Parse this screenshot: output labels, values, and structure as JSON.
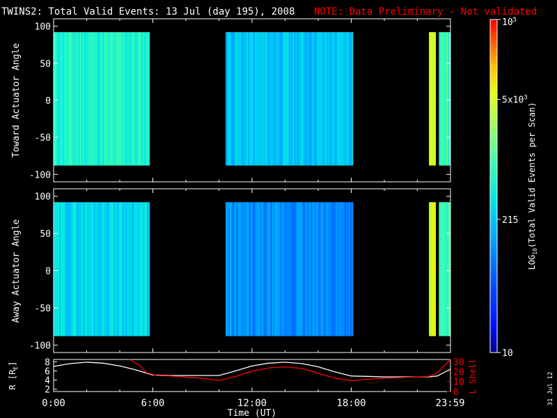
{
  "title": {
    "main": "TWINS2: Total Valid Events: 13 Jul (day 195), 2008",
    "note": "NOTE: Data Preliminary - Not validated"
  },
  "colors": {
    "background": "#000000",
    "axes": "#ffffff",
    "note": "#ff0000",
    "r_line": "#ffffff",
    "lshell_line": "#ff0000"
  },
  "chart_data": [
    {
      "type": "heatmap",
      "name": "toward-panel",
      "ylabel": "Toward Actuator Angle",
      "ylim": [
        -110,
        110
      ],
      "yticks": [
        100,
        50,
        0,
        -50,
        -100
      ],
      "ytick_labels": [
        "100",
        "50",
        "0",
        "-50",
        "-100"
      ],
      "data_y_range": [
        -88,
        92
      ],
      "xlim": [
        0,
        24
      ],
      "segments": [
        {
          "start": 0.0,
          "end": 5.8,
          "level": 0.52
        },
        {
          "start": 10.4,
          "end": 18.1,
          "level": 0.4
        },
        {
          "start": 22.7,
          "end": 23.1,
          "level": 0.78
        },
        {
          "start": 23.3,
          "end": 24.0,
          "level": 0.56
        }
      ]
    },
    {
      "type": "heatmap",
      "name": "away-panel",
      "ylabel": "Away Actuator Angle",
      "ylim": [
        -110,
        110
      ],
      "yticks": [
        100,
        50,
        0,
        -50,
        -100
      ],
      "ytick_labels": [
        "100",
        "50",
        "0",
        "-50",
        "-100"
      ],
      "data_y_range": [
        -88,
        92
      ],
      "xlim": [
        0,
        24
      ],
      "segments": [
        {
          "start": 0.0,
          "end": 5.8,
          "level": 0.44
        },
        {
          "start": 10.4,
          "end": 18.1,
          "level": 0.3
        },
        {
          "start": 22.7,
          "end": 23.1,
          "level": 0.76
        },
        {
          "start": 23.3,
          "end": 24.0,
          "level": 0.56
        }
      ]
    },
    {
      "type": "line",
      "name": "orbit-panel",
      "ylabel_left": "R [R",
      "ylabel_left_sub": "E",
      "ylabel_left_close": "]",
      "ylabel_right": "L Shell",
      "ylim_left": [
        1.5,
        8.5
      ],
      "yticks_left": [
        8,
        6,
        4,
        2
      ],
      "ytick_labels_left": [
        "8",
        "6",
        "4",
        "2"
      ],
      "ylim_right": [
        0,
        32
      ],
      "yticks_right": [
        30,
        20,
        10,
        0
      ],
      "ytick_labels_right": [
        "30",
        "20",
        "10",
        "0"
      ],
      "xlim": [
        0,
        24
      ],
      "xtick_values": [
        0,
        6,
        12,
        18,
        23.98
      ],
      "xtick_labels": [
        "0:00",
        "6:00",
        "12:00",
        "18:00",
        "23:59"
      ],
      "xlabel": "Time (UT)",
      "series": [
        {
          "name": "R",
          "axis": "left",
          "x": [
            0,
            1,
            2,
            3,
            4,
            5,
            6,
            7,
            8,
            9,
            10,
            11,
            12,
            13,
            14,
            15,
            16,
            17,
            18,
            19,
            20,
            21,
            22,
            22.7,
            23.2,
            24
          ],
          "y": [
            7.0,
            7.6,
            7.9,
            7.7,
            7.1,
            6.2,
            5.1,
            5.0,
            5.0,
            5.0,
            5.0,
            6.0,
            7.1,
            7.7,
            7.9,
            7.6,
            6.9,
            5.8,
            4.9,
            4.8,
            4.7,
            4.7,
            4.7,
            4.7,
            4.9,
            6.4
          ]
        },
        {
          "name": "L Shell",
          "axis": "right",
          "x": [
            4.6,
            5.2,
            5.6,
            6.2,
            7,
            8,
            9,
            10,
            11,
            12,
            13,
            14,
            15,
            16,
            17,
            18,
            19,
            20,
            21,
            22,
            22.7,
            23.2,
            24
          ],
          "y": [
            33,
            26,
            19,
            16,
            15.6,
            14.5,
            13.2,
            11.0,
            15.0,
            20.3,
            23.6,
            24.6,
            23.0,
            18.2,
            13.3,
            10.9,
            12.2,
            13.4,
            14.0,
            14.6,
            15.0,
            18.5,
            33
          ]
        }
      ]
    },
    {
      "type": "colorbar",
      "name": "colorbar",
      "label_main": "LOG",
      "label_sub": "10",
      "label_rest": "(Total Valid Events per Scan)",
      "tick_labels": [
        "10",
        "215",
        "5x10",
        "10"
      ],
      "tick_exponents": [
        "",
        "",
        "3",
        "5"
      ],
      "tick_positions": [
        0.0,
        0.4,
        0.76,
        1.0
      ]
    }
  ],
  "footer": {
    "date_stamp": "31 Jul 12"
  }
}
